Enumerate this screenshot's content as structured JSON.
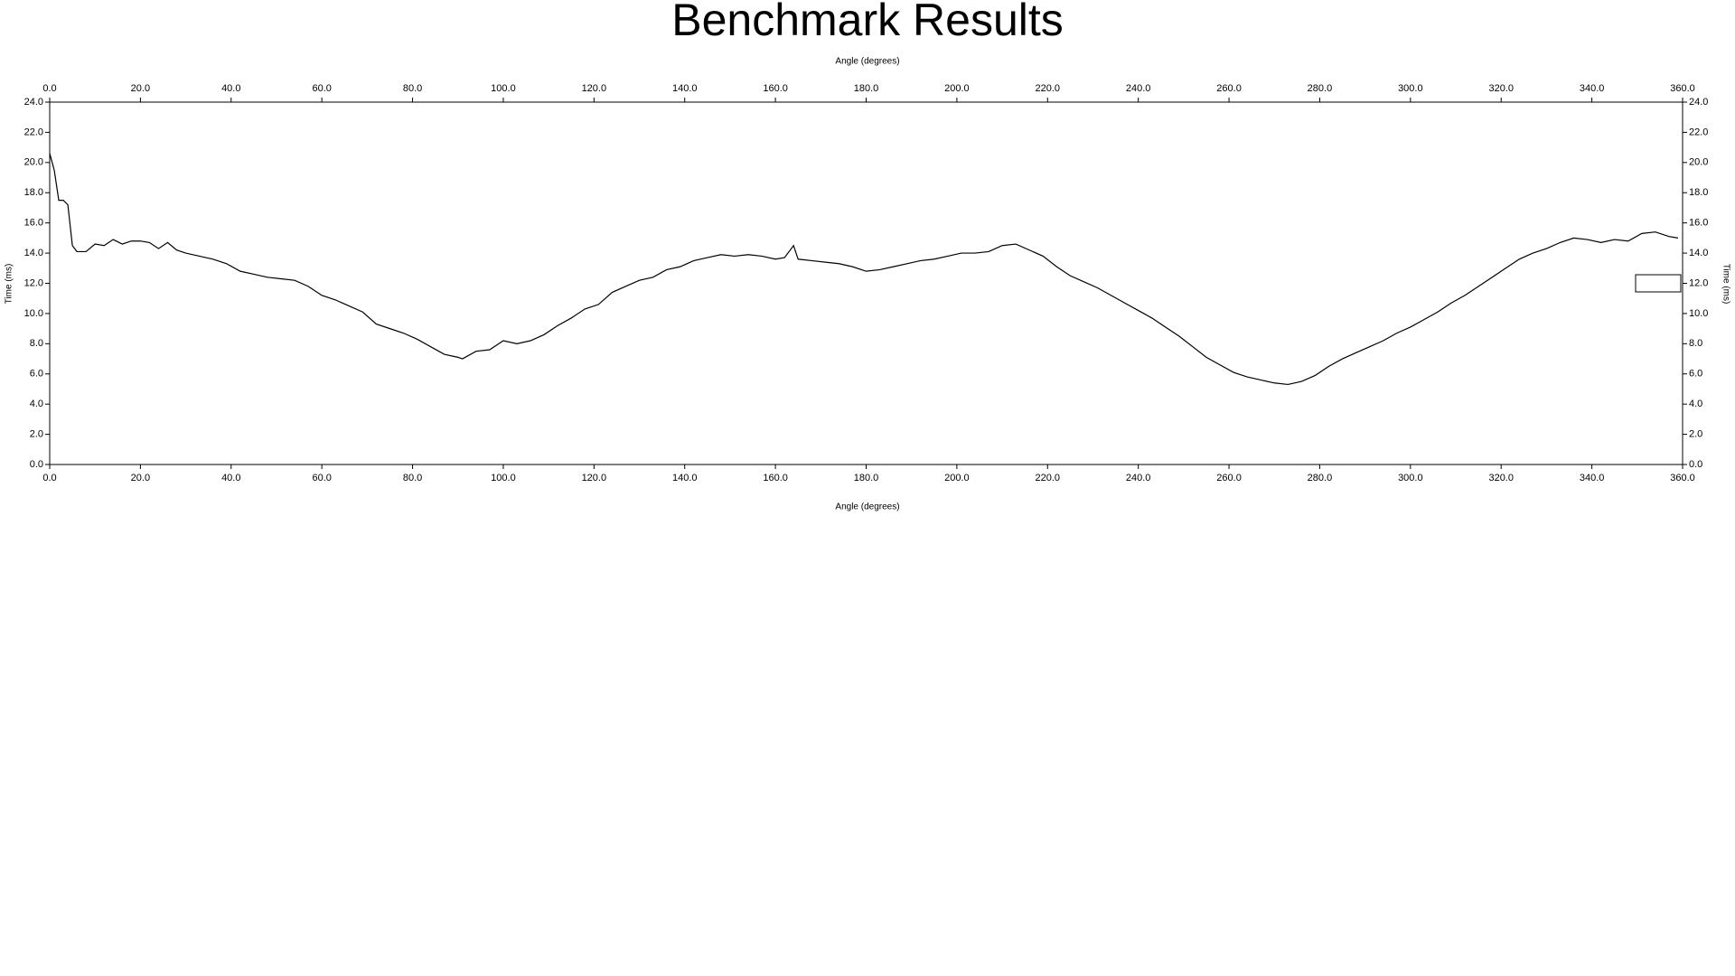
{
  "chart_data": {
    "type": "line",
    "title": "Benchmark Results",
    "x_label": "Angle (degrees)",
    "y_label": "Time (ms)",
    "xlim": [
      0,
      360
    ],
    "ylim": [
      0,
      24
    ],
    "xticks": [
      {
        "value": 0,
        "label": "0.0"
      },
      {
        "value": 20,
        "label": "20.0"
      },
      {
        "value": 40,
        "label": "40.0"
      },
      {
        "value": 60,
        "label": "60.0"
      },
      {
        "value": 80,
        "label": "80.0"
      },
      {
        "value": 100,
        "label": "100.0"
      },
      {
        "value": 120,
        "label": "120.0"
      },
      {
        "value": 140,
        "label": "140.0"
      },
      {
        "value": 160,
        "label": "160.0"
      },
      {
        "value": 180,
        "label": "180.0"
      },
      {
        "value": 200,
        "label": "200.0"
      },
      {
        "value": 220,
        "label": "220.0"
      },
      {
        "value": 240,
        "label": "240.0"
      },
      {
        "value": 260,
        "label": "260.0"
      },
      {
        "value": 280,
        "label": "280.0"
      },
      {
        "value": 300,
        "label": "300.0"
      },
      {
        "value": 320,
        "label": "320.0"
      },
      {
        "value": 340,
        "label": "340.0"
      },
      {
        "value": 360,
        "label": "360.0"
      }
    ],
    "yticks": [
      {
        "value": 0,
        "label": "0.0"
      },
      {
        "value": 2,
        "label": "2.0"
      },
      {
        "value": 4,
        "label": "4.0"
      },
      {
        "value": 6,
        "label": "6.0"
      },
      {
        "value": 8,
        "label": "8.0"
      },
      {
        "value": 10,
        "label": "10.0"
      },
      {
        "value": 12,
        "label": "12.0"
      },
      {
        "value": 14,
        "label": "14.0"
      },
      {
        "value": 16,
        "label": "16.0"
      },
      {
        "value": 18,
        "label": "18.0"
      },
      {
        "value": 20,
        "label": "20.0"
      },
      {
        "value": 22,
        "label": "22.0"
      },
      {
        "value": 24,
        "label": "24.0"
      }
    ],
    "grid": false,
    "x": [
      0,
      1,
      2,
      3,
      4,
      5,
      6,
      8,
      10,
      12,
      14,
      16,
      18,
      20,
      22,
      24,
      26,
      28,
      30,
      33,
      36,
      39,
      42,
      45,
      48,
      51,
      54,
      57,
      60,
      63,
      66,
      69,
      72,
      75,
      78,
      81,
      84,
      87,
      90,
      91,
      94,
      97,
      100,
      103,
      106,
      109,
      112,
      115,
      118,
      121,
      124,
      127,
      130,
      133,
      136,
      139,
      142,
      145,
      148,
      151,
      154,
      157,
      160,
      162,
      164,
      165,
      168,
      171,
      174,
      177,
      180,
      183,
      186,
      189,
      192,
      195,
      198,
      201,
      204,
      207,
      210,
      213,
      216,
      219,
      222,
      225,
      228,
      231,
      234,
      237,
      240,
      243,
      246,
      249,
      252,
      255,
      258,
      261,
      264,
      267,
      270,
      273,
      276,
      279,
      282,
      285,
      288,
      291,
      294,
      297,
      300,
      303,
      306,
      309,
      312,
      315,
      318,
      321,
      324,
      327,
      330,
      333,
      336,
      339,
      342,
      345,
      348,
      351,
      354,
      357,
      359
    ],
    "series": [
      {
        "color": "#000000",
        "values": [
          20.6,
          19.5,
          17.5,
          17.5,
          17.2,
          14.5,
          14.1,
          14.1,
          14.6,
          14.5,
          14.9,
          14.6,
          14.8,
          14.8,
          14.7,
          14.3,
          14.7,
          14.2,
          14.0,
          13.8,
          13.6,
          13.3,
          12.8,
          12.6,
          12.4,
          12.3,
          12.2,
          11.8,
          11.2,
          10.9,
          10.5,
          10.1,
          9.3,
          9.0,
          8.7,
          8.3,
          7.8,
          7.3,
          7.1,
          7.0,
          7.5,
          7.6,
          8.2,
          8.0,
          8.2,
          8.6,
          9.2,
          9.7,
          10.3,
          10.6,
          11.4,
          11.8,
          12.2,
          12.4,
          12.9,
          13.1,
          13.5,
          13.7,
          13.9,
          13.8,
          13.9,
          13.8,
          13.6,
          13.7,
          14.5,
          13.6,
          13.5,
          13.4,
          13.3,
          13.1,
          12.8,
          12.9,
          13.1,
          13.3,
          13.5,
          13.6,
          13.8,
          14.0,
          14.0,
          14.1,
          14.5,
          14.6,
          14.2,
          13.8,
          13.1,
          12.5,
          12.1,
          11.7,
          11.2,
          10.7,
          10.2,
          9.7,
          9.1,
          8.5,
          7.8,
          7.1,
          6.6,
          6.1,
          5.8,
          5.6,
          5.4,
          5.3,
          5.5,
          5.9,
          6.5,
          7.0,
          7.4,
          7.8,
          8.2,
          8.7,
          9.1,
          9.6,
          10.1,
          10.7,
          11.2,
          11.8,
          12.4,
          13.0,
          13.6,
          14.0,
          14.3,
          14.7,
          15.0,
          14.9,
          14.7,
          14.9,
          14.8,
          15.3,
          15.4,
          15.1,
          15.0
        ]
      }
    ]
  }
}
